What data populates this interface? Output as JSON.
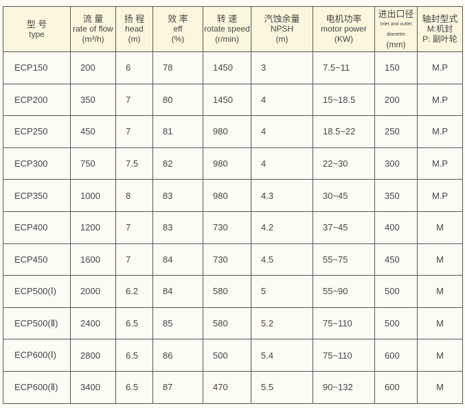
{
  "headers": [
    {
      "cn": "型 号",
      "en": "type",
      "unit": ""
    },
    {
      "cn": "流 量",
      "en": "rate of flow",
      "unit": "(m³/h)"
    },
    {
      "cn": "扬 程",
      "en": "head",
      "unit": "(m)"
    },
    {
      "cn": "效 率",
      "en": "eff",
      "unit": "(%)"
    },
    {
      "cn": "转 速",
      "en": "rotate speed",
      "unit": "(r/min)"
    },
    {
      "cn": "汽蚀余量",
      "en": "NPSH",
      "unit": "(m)"
    },
    {
      "cn": "电机功率",
      "en": "motor power",
      "unit": "(KW)"
    },
    {
      "cn": "进出口径",
      "en": "Inlet and outlet diameter",
      "unit": "(mm)"
    },
    {
      "cn": "轴封型式",
      "en": "M:机封",
      "unit": "P: 副叶轮"
    }
  ],
  "rows": [
    [
      "ECP150",
      "200",
      "6",
      "78",
      "1450",
      "3",
      "7.5~11",
      "150",
      "M.P"
    ],
    [
      "ECP200",
      "350",
      "7",
      "80",
      "1450",
      "4",
      "15~18.5",
      "200",
      "M.P"
    ],
    [
      "ECP250",
      "450",
      "7",
      "81",
      "980",
      "4",
      "18.5~22",
      "250",
      "M.P"
    ],
    [
      "ECP300",
      "750",
      "7.5",
      "82",
      "980",
      "4",
      "22~30",
      "300",
      "M.P"
    ],
    [
      "ECP350",
      "1000",
      "8",
      "83",
      "980",
      "4.3",
      "30~45",
      "350",
      "M.P"
    ],
    [
      "ECP400",
      "1200",
      "7",
      "83",
      "730",
      "4.2",
      "37~45",
      "400",
      "M"
    ],
    [
      "ECP450",
      "1600",
      "7",
      "84",
      "730",
      "4.5",
      "55~75",
      "450",
      "M"
    ],
    [
      "ECP500(Ⅰ)",
      "2000",
      "6.2",
      "84",
      "580",
      "5",
      "55~90",
      "500",
      "M"
    ],
    [
      "ECP500(Ⅱ)",
      "2400",
      "6.5",
      "85",
      "580",
      "5.2",
      "75~110",
      "500",
      "M"
    ],
    [
      "ECP600(Ⅰ)",
      "2800",
      "6.5",
      "86",
      "500",
      "5.4",
      "75~110",
      "600",
      "M"
    ],
    [
      "ECP600(Ⅱ)",
      "3400",
      "6.5",
      "87",
      "470",
      "5.5",
      "90~132",
      "600",
      "M"
    ]
  ]
}
